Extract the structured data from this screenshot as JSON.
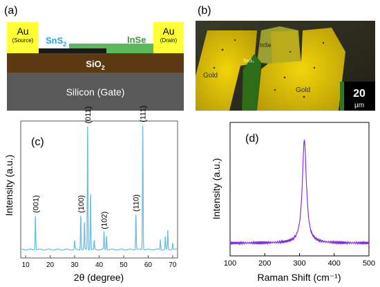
{
  "panel_labels": {
    "a": "(a)",
    "b": "(b)",
    "c": "(c)",
    "d": "(d)"
  },
  "device": {
    "au_left": "Au",
    "au_left_sub": "(Source)",
    "au_right": "Au",
    "au_right_sub": "(Drain)",
    "sns2": "SnS",
    "sns2_sub": "2",
    "inse": "InSe",
    "sio2": "SiO",
    "sio2_sub": "2",
    "silicon": "Silicon (Gate)"
  },
  "micrograph": {
    "inse": "InSe",
    "sns2": "SnS₂",
    "gold_left": "Gold",
    "gold_right": "Gold",
    "scale_value": "20",
    "scale_unit": "µm"
  },
  "colors": {
    "au": "#ffff33",
    "sns2": "#1a1a1a",
    "inse": "#5cb85c",
    "sio2": "#5c3a12",
    "silicon": "#595959",
    "xrd_line": "#6bbfe8",
    "raman_line": "#8a2be2"
  },
  "chart_data": [
    {
      "type": "line",
      "panel": "(c)",
      "xlabel": "2θ (degree)",
      "ylabel": "Intensity (a.u.)",
      "xlim": [
        8,
        72
      ],
      "ylim": [
        0,
        100
      ],
      "xticks": [
        10,
        20,
        30,
        40,
        50,
        60,
        70
      ],
      "peaks": [
        {
          "x": 14.0,
          "y": 27,
          "label": "(001)"
        },
        {
          "x": 30.0,
          "y": 7
        },
        {
          "x": 32.5,
          "y": 27,
          "label": "(100)"
        },
        {
          "x": 34.0,
          "y": 21
        },
        {
          "x": 35.3,
          "y": 98,
          "label": "(011)"
        },
        {
          "x": 36.5,
          "y": 44
        },
        {
          "x": 38.0,
          "y": 7
        },
        {
          "x": 42.0,
          "y": 14,
          "label": "(102)"
        },
        {
          "x": 43.0,
          "y": 11
        },
        {
          "x": 55.0,
          "y": 28,
          "label": "(110)"
        },
        {
          "x": 57.8,
          "y": 99,
          "label": "(111)"
        },
        {
          "x": 65.0,
          "y": 8
        },
        {
          "x": 67.0,
          "y": 10
        },
        {
          "x": 68.0,
          "y": 15
        },
        {
          "x": 70.0,
          "y": 5
        }
      ]
    },
    {
      "type": "line",
      "panel": "(d)",
      "xlabel": "Raman Shift (cm⁻¹)",
      "ylabel": "Intensity (a.u.)",
      "xlim": [
        100,
        500
      ],
      "ylim": [
        0,
        100
      ],
      "xticks": [
        100,
        200,
        300,
        400,
        500
      ],
      "baseline": 10,
      "peak": {
        "x": 314,
        "y": 90,
        "hwhm": 7
      }
    }
  ]
}
